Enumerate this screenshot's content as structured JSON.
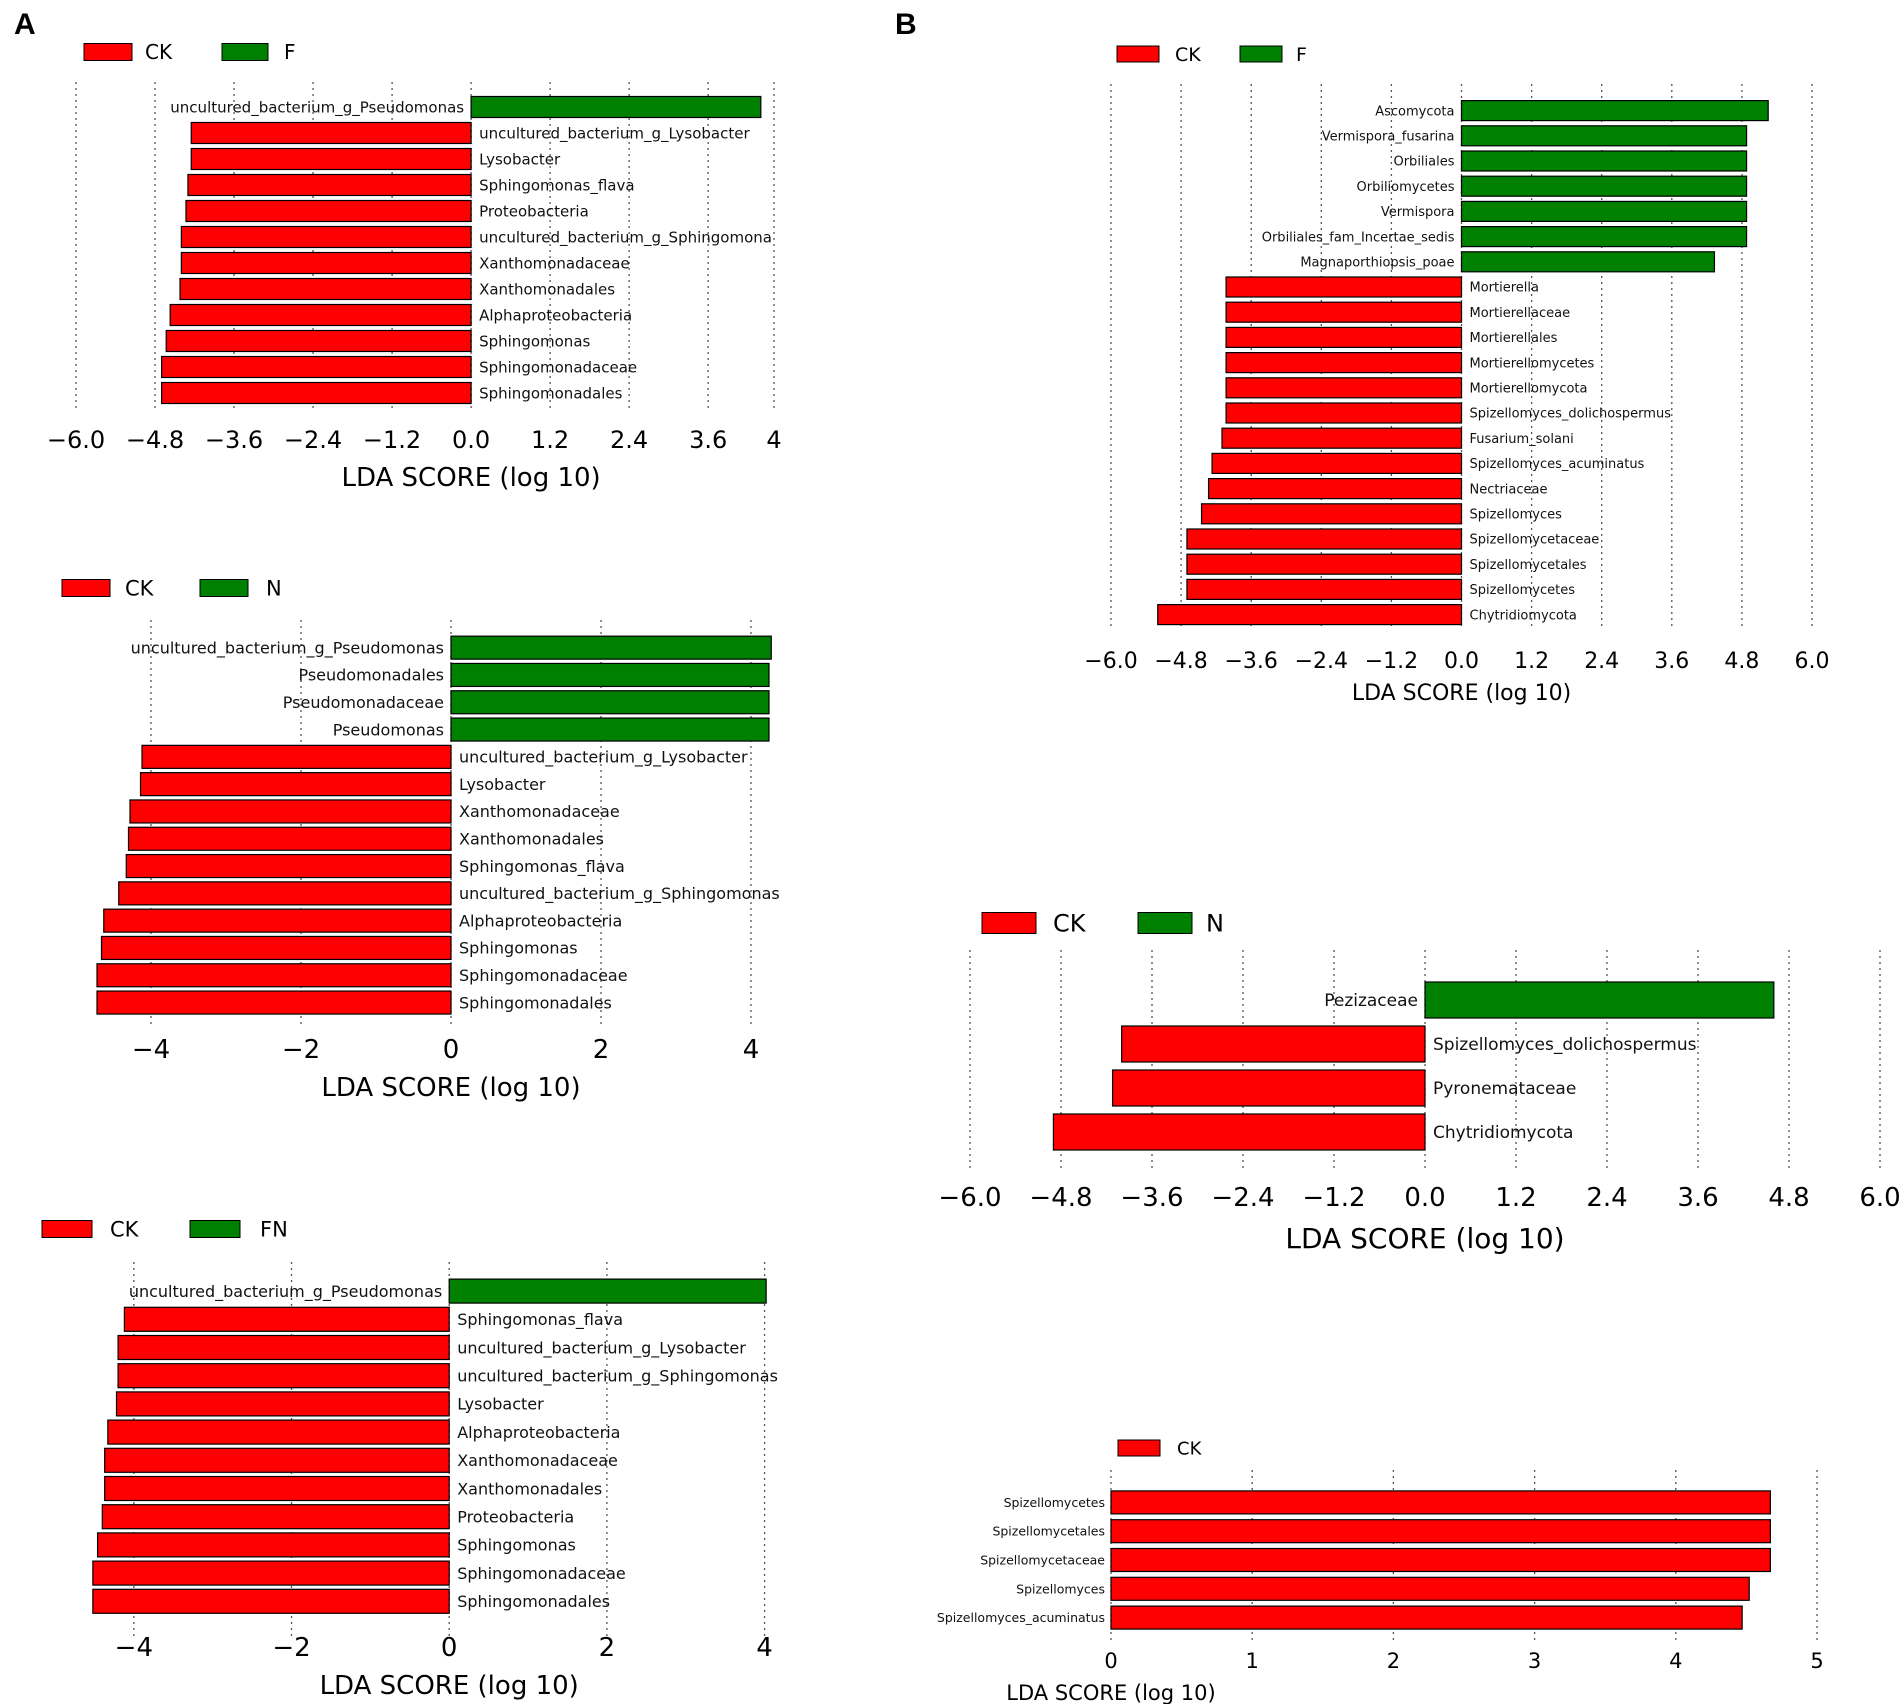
{
  "panels": {
    "a": "A",
    "b": "B"
  },
  "colors": {
    "ck": "#ff0000",
    "treat": "#008000",
    "edge": "#000000",
    "grid": "#555555"
  },
  "axis_label": "LDA SCORE (log 10)",
  "chart_data": [
    {
      "id": "a1",
      "type": "bar",
      "orientation": "horizontal",
      "legend": [
        "CK",
        "F"
      ],
      "xlabel": "LDA SCORE (log 10)",
      "xlim": [
        -6.0,
        4.6
      ],
      "ticks": [
        -6.0,
        -4.8,
        -3.6,
        -2.4,
        -1.2,
        0.0,
        1.2,
        2.4,
        3.6
      ],
      "tick_labels": [
        "−6.0",
        "−4.8",
        "−3.6",
        "−2.4",
        "−1.2",
        "0.0",
        "1.2",
        "2.4",
        "3.6"
      ],
      "extra_ticks": [
        {
          "value": 4.6,
          "label": "4"
        }
      ],
      "categories": [
        "uncultured_bacterium_g_Pseudomonas",
        "uncultured_bacterium_g_Lysobacter",
        "Lysobacter",
        "Sphingomonas_flava",
        "Proteobacteria",
        "uncultured_bacterium_g_Sphingomonas",
        "Xanthomonadaceae",
        "Xanthomonadales",
        "Alphaproteobacteria",
        "Sphingomonas",
        "Sphingomonadaceae",
        "Sphingomonadales"
      ],
      "display_labels": [
        "uncultured_bacterium_g_Pseudomonas",
        "uncultured_bacterium_g_Lysobacter",
        "Lysobacter",
        "Sphingomonas_flava",
        "Proteobacteria",
        "uncultured_bacterium_g_Sphingomona",
        "Xanthomonadaceae",
        "Xanthomonadales",
        "Alphaproteobacteria",
        "Sphingomonas",
        "Sphingomonadaceae",
        "Sphingomonadales"
      ],
      "values": [
        4.4,
        -4.25,
        -4.25,
        -4.3,
        -4.33,
        -4.4,
        -4.4,
        -4.42,
        -4.57,
        -4.63,
        -4.7,
        -4.7
      ],
      "groups": [
        "F",
        "CK",
        "CK",
        "CK",
        "CK",
        "CK",
        "CK",
        "CK",
        "CK",
        "CK",
        "CK",
        "CK"
      ]
    },
    {
      "id": "a2",
      "type": "bar",
      "orientation": "horizontal",
      "legend": [
        "CK",
        "N"
      ],
      "xlabel": "LDA SCORE (log 10)",
      "xlim": [
        -5.0,
        4.6
      ],
      "ticks": [
        -4,
        -2,
        0,
        2,
        4
      ],
      "tick_labels": [
        "−4",
        "−2",
        "0",
        "2",
        "4"
      ],
      "categories": [
        "uncultured_bacterium_g_Pseudomonas",
        "Pseudomonadales",
        "Pseudomonadaceae",
        "Pseudomonas",
        "uncultured_bacterium_g_Lysobacter",
        "Lysobacter",
        "Xanthomonadaceae",
        "Xanthomonadales",
        "Sphingomonas_flava",
        "uncultured_bacterium_g_Sphingomonas",
        "Alphaproteobacteria",
        "Sphingomonas",
        "Sphingomonadaceae",
        "Sphingomonadales"
      ],
      "display_labels": [
        "uncultured_bacterium_g_Pseudomonas",
        "Pseudomonadales",
        "Pseudomonadaceae",
        "Pseudomonas",
        "uncultured_bacterium_g_Lysobacter",
        "Lysobacter",
        "Xanthomonadaceae",
        "Xanthomonadales",
        "Sphingomonas_flava",
        "uncultured_bacterium_g_Sphingomonas",
        "Alphaproteobacteria",
        "Sphingomonas",
        "Sphingomonadaceae",
        "Sphingomonadales"
      ],
      "values": [
        4.27,
        4.24,
        4.24,
        4.24,
        -4.12,
        -4.14,
        -4.28,
        -4.3,
        -4.33,
        -4.43,
        -4.63,
        -4.66,
        -4.72,
        -4.72
      ],
      "groups": [
        "N",
        "N",
        "N",
        "N",
        "CK",
        "CK",
        "CK",
        "CK",
        "CK",
        "CK",
        "CK",
        "CK",
        "CK",
        "CK"
      ]
    },
    {
      "id": "a3",
      "type": "bar",
      "orientation": "horizontal",
      "legend": [
        "CK",
        "FN"
      ],
      "xlabel": "LDA SCORE (log 10)",
      "xlim": [
        -5.0,
        4.5
      ],
      "ticks": [
        -4,
        -2,
        0,
        2,
        4
      ],
      "tick_labels": [
        "−4",
        "−2",
        "0",
        "2",
        "4"
      ],
      "categories": [
        "uncultured_bacterium_g_Pseudomonas",
        "Sphingomonas_flava",
        "uncultured_bacterium_g_Lysobacter",
        "uncultured_bacterium_g_Sphingomonas",
        "Lysobacter",
        "Alphaproteobacteria",
        "Xanthomonadaceae",
        "Xanthomonadales",
        "Proteobacteria",
        "Sphingomonas",
        "Sphingomonadaceae",
        "Sphingomonadales"
      ],
      "display_labels": [
        "uncultured_bacterium_g_Pseudomonas",
        "Sphingomonas_flava",
        "uncultured_bacterium_g_Lysobacter",
        "uncultured_bacterium_g_Sphingomonas",
        "Lysobacter",
        "Alphaproteobacteria",
        "Xanthomonadaceae",
        "Xanthomonadales",
        "Proteobacteria",
        "Sphingomonas",
        "Sphingomonadaceae",
        "Sphingomonadales"
      ],
      "values": [
        4.02,
        -4.12,
        -4.2,
        -4.2,
        -4.22,
        -4.33,
        -4.37,
        -4.37,
        -4.4,
        -4.46,
        -4.52,
        -4.52
      ],
      "groups": [
        "FN",
        "CK",
        "CK",
        "CK",
        "CK",
        "CK",
        "CK",
        "CK",
        "CK",
        "CK",
        "CK",
        "CK"
      ]
    },
    {
      "id": "b1",
      "type": "bar",
      "orientation": "horizontal",
      "legend": [
        "CK",
        "F"
      ],
      "xlabel": "LDA SCORE (log 10)",
      "xlim": [
        -6.0,
        6.0
      ],
      "ticks": [
        -6.0,
        -4.8,
        -3.6,
        -2.4,
        -1.2,
        0.0,
        1.2,
        2.4,
        3.6,
        4.8,
        6.0
      ],
      "tick_labels": [
        "−6.0",
        "−4.8",
        "−3.6",
        "−2.4",
        "−1.2",
        "0.0",
        "1.2",
        "2.4",
        "3.6",
        "4.8",
        "6.0"
      ],
      "categories": [
        "Ascomycota",
        "Vermispora_fusarina",
        "Orbiliales",
        "Orbiliomycetes",
        "Vermispora",
        "Orbiliales_fam_Incertae_sedis",
        "Magnaporthiopsis_poae",
        "Mortierella",
        "Mortierellaceae",
        "Mortierellales",
        "Mortierellomycetes",
        "Mortierellomycota",
        "Spizellomyces_dolichospermus",
        "Fusarium_solani",
        "Spizellomyces_acuminatus",
        "Nectriaceae",
        "Spizellomyces",
        "Spizellomycetaceae",
        "Spizellomycetales",
        "Spizellomycetes",
        "Chytridiomycota"
      ],
      "display_labels": [
        "Ascomycota",
        "Vermispora_fusarina",
        "Orbiliales",
        "Orbiliomycetes",
        "Vermispora",
        "Orbiliales_fam_Incertae_sedis",
        "Magnaporthiopsis_poae",
        "Mortierella",
        "Mortierellaceae",
        "Mortierellales",
        "Mortierellomycetes",
        "Mortierellomycota",
        "Spizellomyces_dolichospermus",
        "Fusarium_solani",
        "Spizellomyces_acuminatus",
        "Nectriaceae",
        "Spizellomyces",
        "Spizellomycetaceae",
        "Spizellomycetales",
        "Spizellomycetes",
        "Chytridiomycota"
      ],
      "values": [
        5.25,
        4.88,
        4.88,
        4.88,
        4.88,
        4.88,
        4.33,
        -4.03,
        -4.03,
        -4.03,
        -4.03,
        -4.03,
        -4.03,
        -4.1,
        -4.27,
        -4.33,
        -4.45,
        -4.7,
        -4.7,
        -4.7,
        -5.2
      ],
      "groups": [
        "F",
        "F",
        "F",
        "F",
        "F",
        "F",
        "F",
        "CK",
        "CK",
        "CK",
        "CK",
        "CK",
        "CK",
        "CK",
        "CK",
        "CK",
        "CK",
        "CK",
        "CK",
        "CK",
        "CK"
      ]
    },
    {
      "id": "b2",
      "type": "bar",
      "orientation": "horizontal",
      "legend": [
        "CK",
        "N"
      ],
      "xlabel": "LDA SCORE (log 10)",
      "xlim": [
        -6.0,
        6.0
      ],
      "ticks": [
        -6.0,
        -4.8,
        -3.6,
        -2.4,
        -1.2,
        0.0,
        1.2,
        2.4,
        3.6,
        4.8,
        6.0
      ],
      "tick_labels": [
        "−6.0",
        "−4.8",
        "−3.6",
        "−2.4",
        "−1.2",
        "0.0",
        "1.2",
        "2.4",
        "3.6",
        "4.8",
        "6.0"
      ],
      "categories": [
        "Pezizaceae",
        "Spizellomyces_dolichospermus",
        "Pyronemataceae",
        "Chytridiomycota"
      ],
      "display_labels": [
        "Pezizaceae",
        "Spizellomyces_dolichospermus",
        "Pyronemataceae",
        "Chytridiomycota"
      ],
      "values": [
        4.6,
        -4.0,
        -4.12,
        -4.9
      ],
      "groups": [
        "N",
        "CK",
        "CK",
        "CK"
      ]
    },
    {
      "id": "b3",
      "type": "bar",
      "orientation": "horizontal",
      "legend": [
        "CK"
      ],
      "xlabel": "LDA SCORE (log 10)",
      "xlim": [
        0,
        5
      ],
      "ticks": [
        0,
        1,
        2,
        3,
        4,
        5
      ],
      "tick_labels": [
        "0",
        "1",
        "2",
        "3",
        "4",
        "5"
      ],
      "categories": [
        "Spizellomycetes",
        "Spizellomycetales",
        "Spizellomycetaceae",
        "Spizellomyces",
        "Spizellomyces_acuminatus"
      ],
      "display_labels": [
        "Spizellomycetes",
        "Spizellomycetales",
        "Spizellomycetaceae",
        "Spizellomyces",
        "Spizellomyces_acuminatus"
      ],
      "values": [
        4.67,
        4.67,
        4.67,
        4.52,
        4.47
      ],
      "groups": [
        "CK",
        "CK",
        "CK",
        "CK",
        "CK"
      ]
    }
  ]
}
